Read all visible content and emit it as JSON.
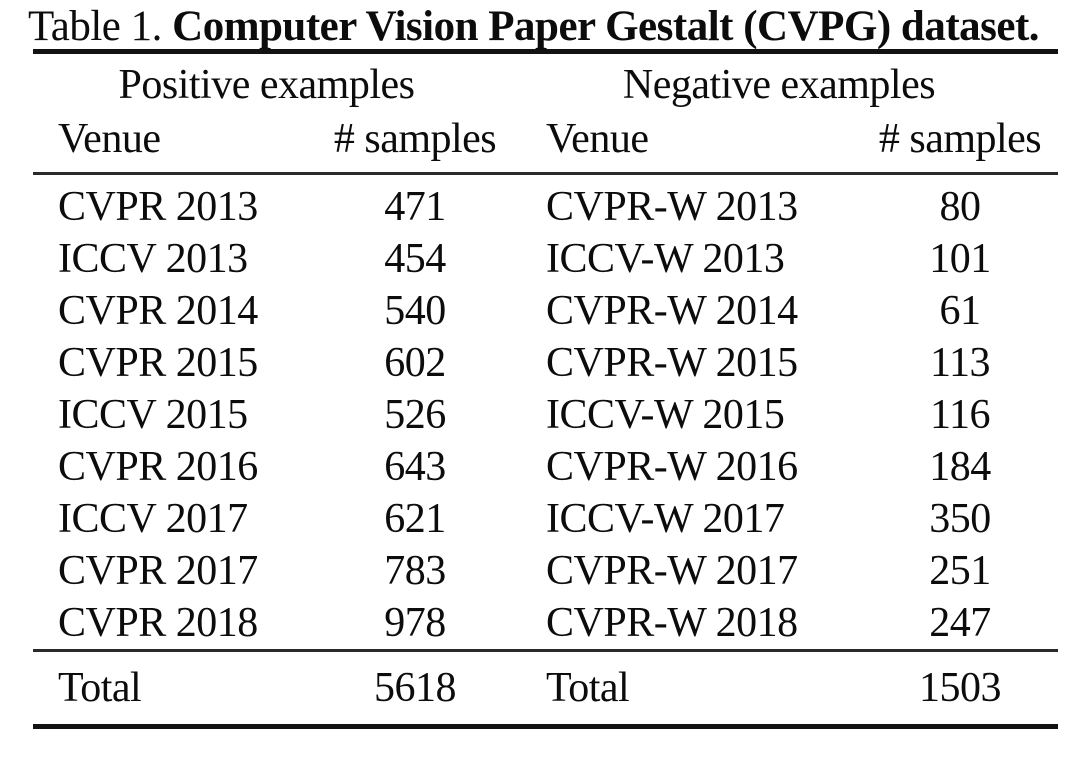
{
  "caption": {
    "prefix": "Table 1.",
    "title": "Computer Vision Paper Gestalt (CVPG) dataset."
  },
  "table": {
    "group_headers": [
      {
        "label": "Positive examples"
      },
      {
        "label": "Negative examples"
      }
    ],
    "column_headers": [
      "Venue",
      "# samples",
      "Venue",
      "# samples"
    ],
    "positive": {
      "rows": [
        {
          "venue": "CVPR 2013",
          "samples": "471"
        },
        {
          "venue": "ICCV 2013",
          "samples": "454"
        },
        {
          "venue": "CVPR 2014",
          "samples": "540"
        },
        {
          "venue": "CVPR 2015",
          "samples": "602"
        },
        {
          "venue": "ICCV 2015",
          "samples": "526"
        },
        {
          "venue": "CVPR 2016",
          "samples": "643"
        },
        {
          "venue": "ICCV 2017",
          "samples": "621"
        },
        {
          "venue": "CVPR 2017",
          "samples": "783"
        },
        {
          "venue": "CVPR 2018",
          "samples": "978"
        }
      ],
      "total_label": "Total",
      "total_value": "5618"
    },
    "negative": {
      "rows": [
        {
          "venue": "CVPR-W 2013",
          "samples": "80"
        },
        {
          "venue": "ICCV-W 2013",
          "samples": "101"
        },
        {
          "venue": "CVPR-W 2014",
          "samples": "61"
        },
        {
          "venue": "CVPR-W 2015",
          "samples": "113"
        },
        {
          "venue": "ICCV-W 2015",
          "samples": "116"
        },
        {
          "venue": "CVPR-W 2016",
          "samples": "184"
        },
        {
          "venue": "ICCV-W 2017",
          "samples": "350"
        },
        {
          "venue": "CVPR-W 2017",
          "samples": "251"
        },
        {
          "venue": "CVPR-W 2018",
          "samples": "247"
        }
      ],
      "total_label": "Total",
      "total_value": "1503"
    }
  },
  "colors": {
    "text": "#0c0c0c",
    "rule": "#121212",
    "background": "#ffffff"
  }
}
